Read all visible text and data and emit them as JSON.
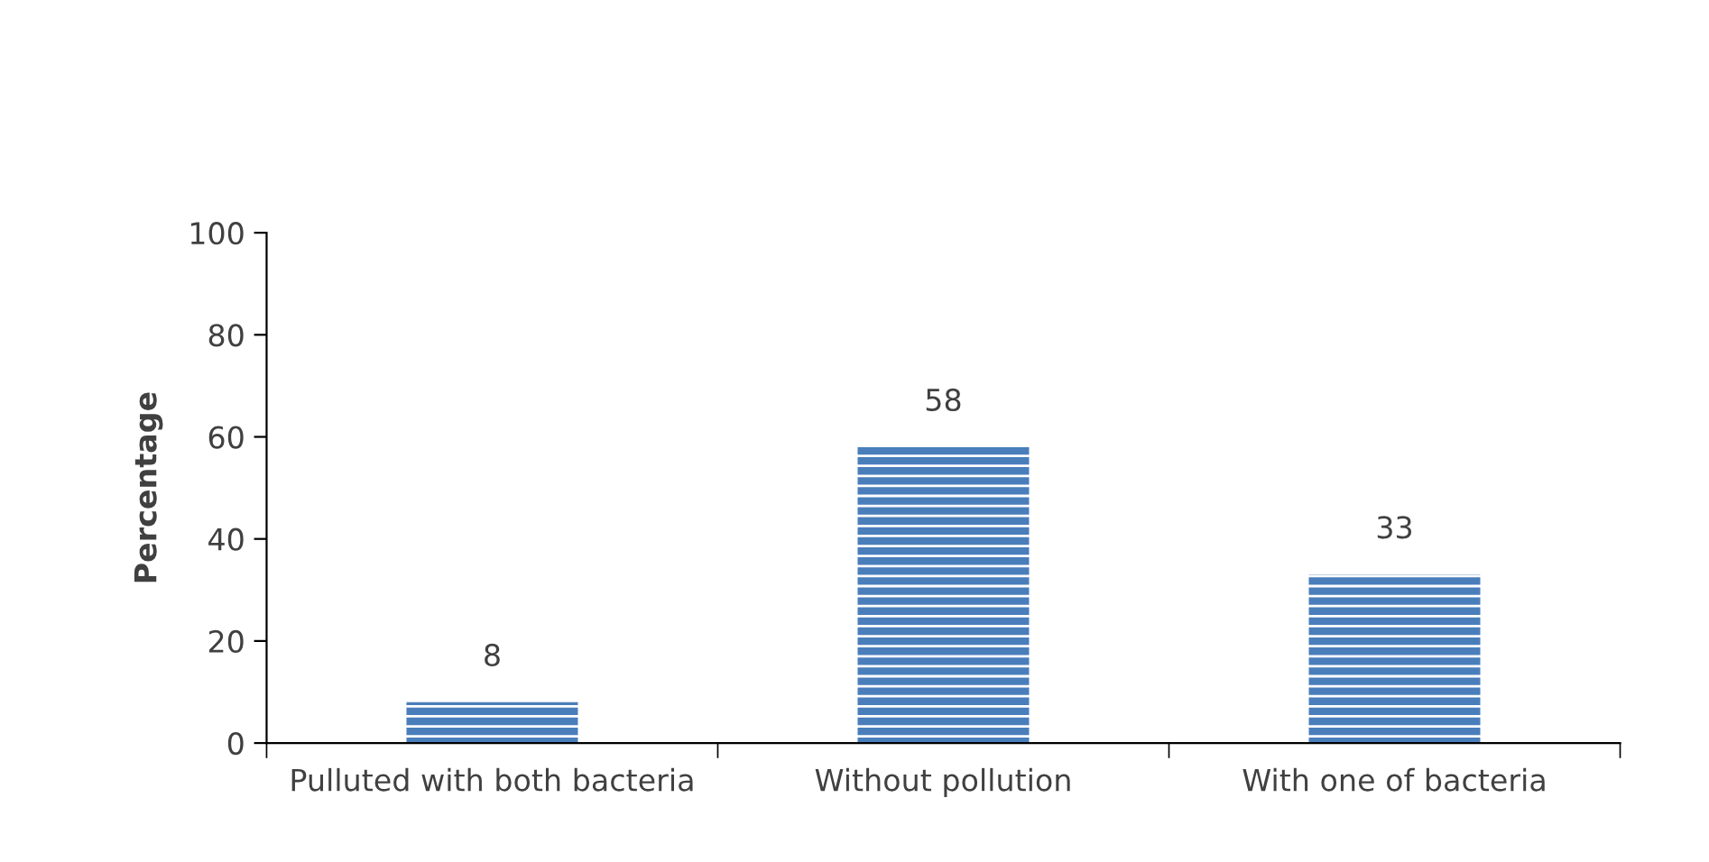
{
  "chart_data": {
    "type": "bar",
    "ylabel": "Percentage",
    "categories": [
      "Pulluted with both bacteria",
      "Without pollution",
      "With one of bacteria"
    ],
    "values": [
      8,
      58,
      33
    ],
    "color": "#4a7ebb",
    "ylim": [
      0,
      100
    ],
    "yticks": [
      0,
      20,
      40,
      60,
      80,
      100
    ],
    "grid": false,
    "data_labels": true
  }
}
